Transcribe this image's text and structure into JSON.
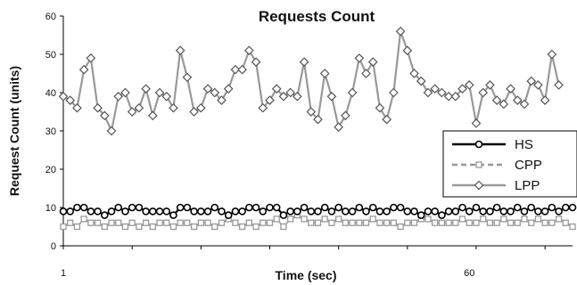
{
  "chart_data": {
    "type": "line",
    "title": "Requests Count",
    "xlabel": "Time (sec)",
    "ylabel": "Request Count (units)",
    "ylim": [
      0,
      60
    ],
    "yticks": [
      0,
      10,
      20,
      30,
      40,
      50,
      60
    ],
    "xlim": [
      1,
      75
    ],
    "xtick_labels": [
      "1",
      "60"
    ],
    "grid": false,
    "legend_position": "right",
    "series": [
      {
        "name": "HS",
        "color": "#000000",
        "marker": "circle",
        "values": [
          9,
          9,
          10,
          10,
          9,
          9,
          8,
          9,
          10,
          9,
          10,
          10,
          9,
          9,
          9,
          9,
          8,
          10,
          10,
          9,
          9,
          9,
          10,
          9,
          8,
          9,
          9,
          10,
          10,
          9,
          10,
          10,
          8,
          9,
          9,
          10,
          9,
          9,
          10,
          9,
          10,
          9,
          9,
          10,
          9,
          10,
          9,
          9,
          10,
          10,
          9,
          9,
          8,
          9,
          9,
          8,
          9,
          9,
          10,
          9,
          10,
          9,
          9,
          10,
          9,
          9,
          10,
          9,
          10,
          9,
          9,
          10,
          9,
          10,
          10
        ]
      },
      {
        "name": "CPP",
        "color": "#999999",
        "marker": "square",
        "values": [
          5,
          6,
          5,
          7,
          6,
          6,
          5,
          6,
          6,
          5,
          6,
          5,
          6,
          5,
          6,
          6,
          5,
          6,
          6,
          5,
          6,
          6,
          5,
          6,
          7,
          6,
          5,
          6,
          5,
          6,
          6,
          7,
          5,
          7,
          8,
          7,
          6,
          6,
          7,
          6,
          7,
          6,
          6,
          6,
          6,
          7,
          6,
          6,
          6,
          5,
          6,
          6,
          7,
          7,
          6,
          6,
          6,
          6,
          7,
          6,
          6,
          7,
          6,
          6,
          7,
          6,
          6,
          7,
          6,
          7,
          6,
          6,
          7,
          6,
          5
        ]
      },
      {
        "name": "LPP",
        "color": "#999999",
        "marker": "diamond",
        "values": [
          39,
          38,
          36,
          46,
          49,
          36,
          34,
          30,
          39,
          40,
          35,
          36,
          41,
          34,
          40,
          39,
          36,
          51,
          44,
          35,
          36,
          41,
          40,
          38,
          41,
          46,
          46,
          51,
          48,
          36,
          38,
          41,
          39,
          40,
          39,
          48,
          35,
          33,
          45,
          39,
          31,
          34,
          40,
          49,
          45,
          48,
          36,
          33,
          40,
          56,
          51,
          45,
          43,
          40,
          41,
          40,
          39,
          39,
          41,
          42,
          32,
          40,
          42,
          38,
          37,
          41,
          38,
          37,
          43,
          42,
          38,
          50,
          42
        ]
      }
    ]
  }
}
